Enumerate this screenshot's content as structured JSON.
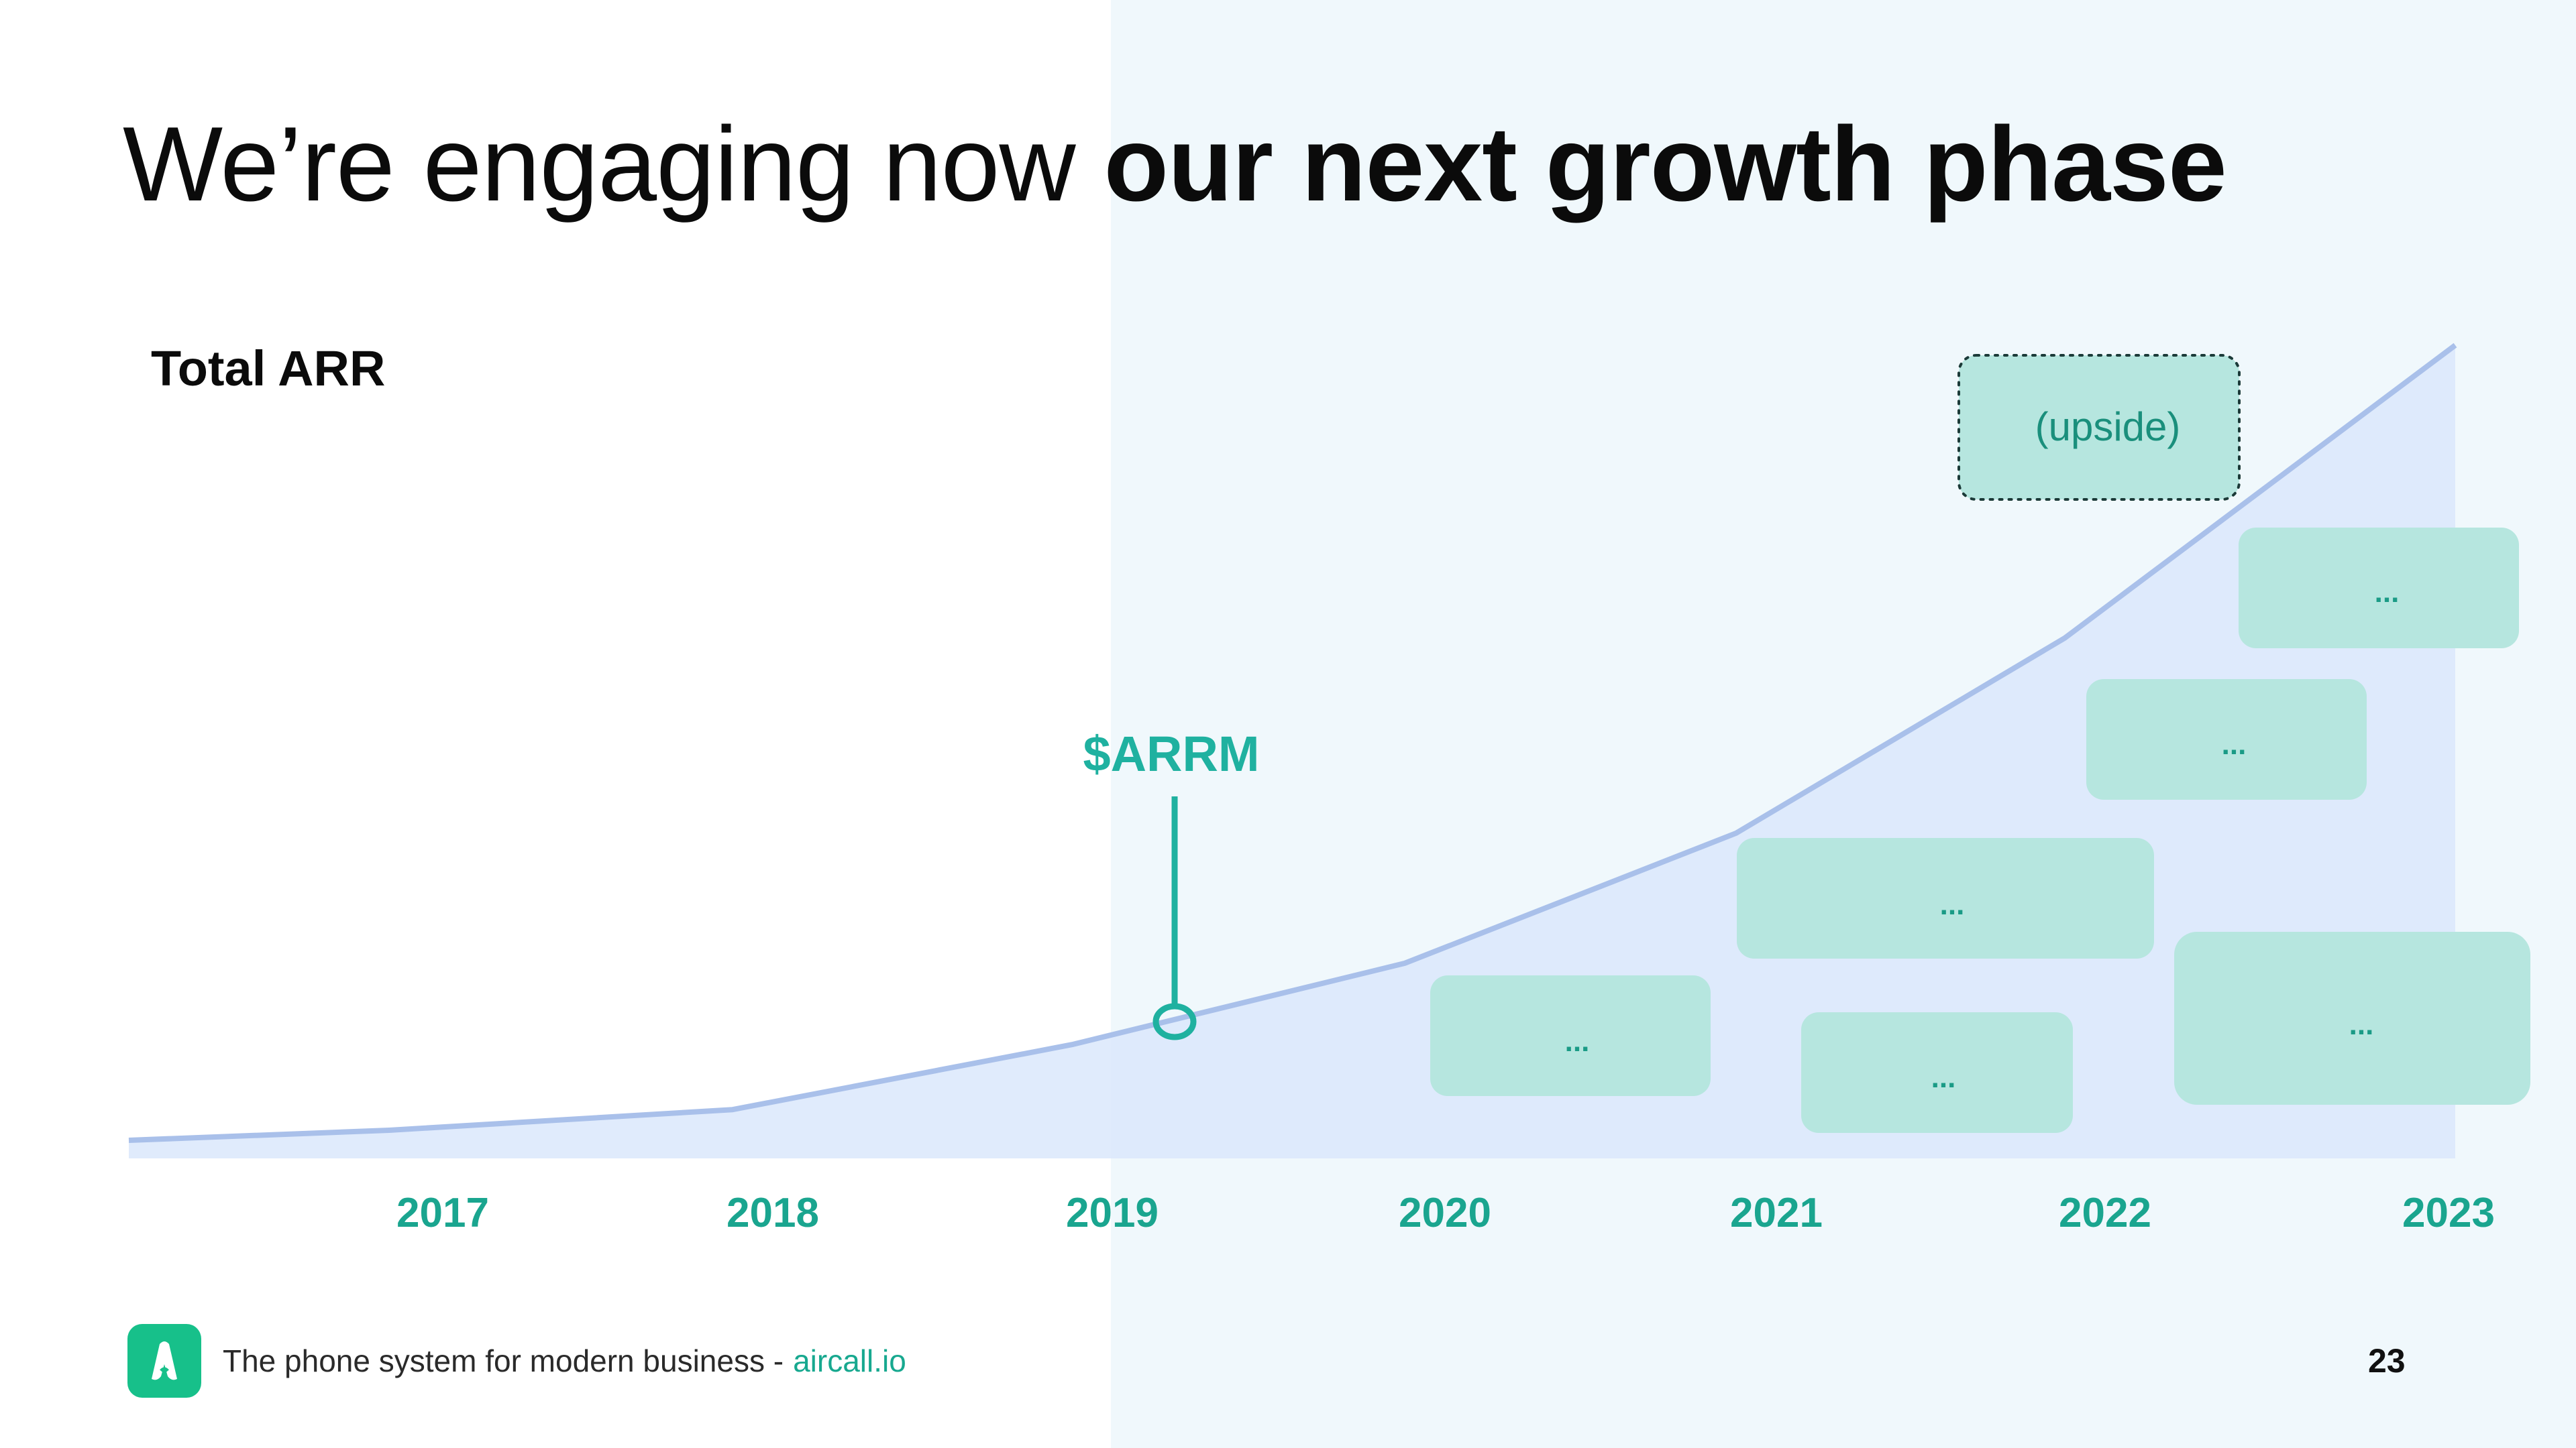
{
  "slide": {
    "title_regular": "We’re engaging now",
    "title_bold": "our next growth phase",
    "page_number": "23"
  },
  "footer": {
    "tagline": "The phone system for modern business -",
    "link": "aircall.io",
    "logo_icon": "aircall-logo-icon"
  },
  "colors": {
    "accent": "#17a88f",
    "area_fill": "#dbe7fb",
    "line": "#a9c0ea",
    "box_fill": "#b6e6df",
    "tint_background": "#f0f8fc"
  },
  "chart_data": {
    "type": "area",
    "title": "Total ARR",
    "x": [
      "2017",
      "2018",
      "2019",
      "2020",
      "2021",
      "2022",
      "2023"
    ],
    "values": [
      2,
      6,
      14,
      24,
      40,
      64,
      100
    ],
    "ylim": [
      0,
      100
    ],
    "annotations": [
      {
        "label": "$ARRM",
        "year": "2019"
      }
    ],
    "boxes": [
      {
        "label": "...",
        "year": "2020"
      },
      {
        "label": "...",
        "year": "2021"
      },
      {
        "label": "...",
        "year": "2021"
      },
      {
        "label": "...",
        "year": "2022"
      },
      {
        "label": "...",
        "year": "2023"
      },
      {
        "label": "...",
        "year": "2023"
      }
    ],
    "upside_label": "(upside)"
  }
}
